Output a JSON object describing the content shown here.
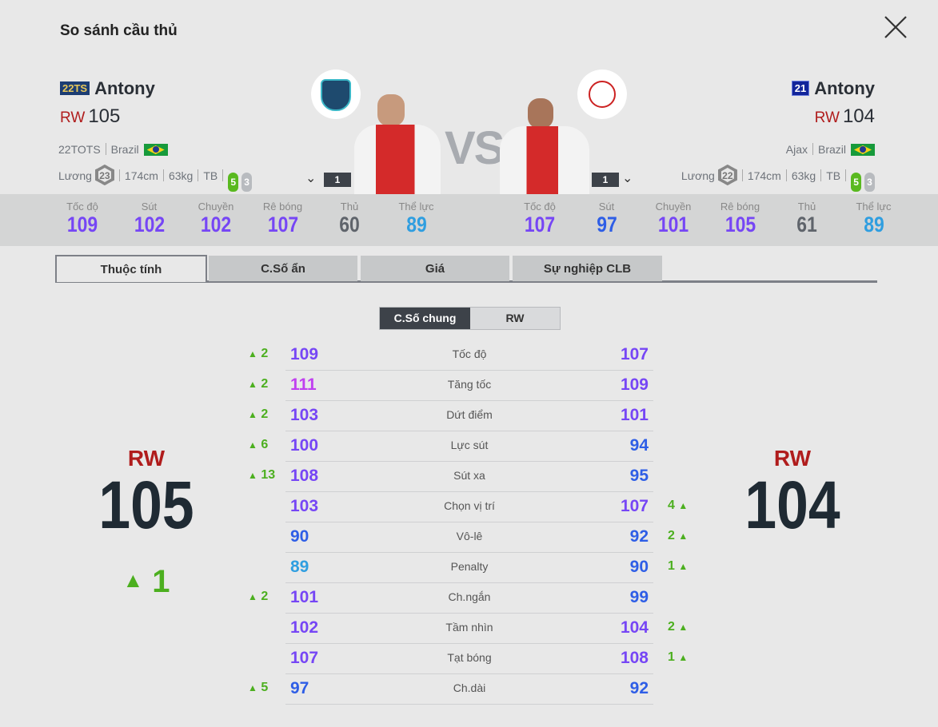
{
  "title": "So sánh cầu thủ",
  "colors": {
    "accent_red": "#b01c1c",
    "up_green": "#4caf1f",
    "purple": "#7646f5",
    "pink": "#c040f0",
    "blue": "#2e5ee6",
    "light_blue": "#2f9ee0",
    "grey": "#5f646b"
  },
  "left": {
    "season_badge": "22TS",
    "name": "Antony",
    "position": "RW",
    "ovr": "105",
    "season": "22TOTS",
    "nation": "Brazil",
    "salary_label": "Lương",
    "salary": "23",
    "height": "174cm",
    "weight": "63kg",
    "build": "TB",
    "weak_foot": "5",
    "skill": "3",
    "level": "1",
    "stats": [
      {
        "label": "Tốc độ",
        "value": "109"
      },
      {
        "label": "Sút",
        "value": "102"
      },
      {
        "label": "Chuyền",
        "value": "102"
      },
      {
        "label": "Rê bóng",
        "value": "107"
      },
      {
        "label": "Thủ",
        "value": "60"
      },
      {
        "label": "Thể lực",
        "value": "89"
      }
    ]
  },
  "right": {
    "season_badge": "21",
    "name": "Antony",
    "position": "RW",
    "ovr": "104",
    "club": "Ajax",
    "nation": "Brazil",
    "salary_label": "Lương",
    "salary": "22",
    "height": "174cm",
    "weight": "63kg",
    "build": "TB",
    "weak_foot": "5",
    "skill": "3",
    "level": "1",
    "stats": [
      {
        "label": "Tốc độ",
        "value": "107"
      },
      {
        "label": "Sút",
        "value": "97"
      },
      {
        "label": "Chuyền",
        "value": "101"
      },
      {
        "label": "Rê bóng",
        "value": "105"
      },
      {
        "label": "Thủ",
        "value": "61"
      },
      {
        "label": "Thể lực",
        "value": "89"
      }
    ]
  },
  "vs": "VS",
  "tabs": [
    "Thuộc tính",
    "C.Số ẩn",
    "Giá",
    "Sự nghiệp CLB"
  ],
  "active_tab": 0,
  "sub_tabs": [
    "C.Số chung",
    "RW"
  ],
  "summary": {
    "left_pos": "RW",
    "left_ovr": "105",
    "left_diff": "1",
    "right_pos": "RW",
    "right_ovr": "104"
  },
  "rows": [
    {
      "name": "Tốc độ",
      "left": "109",
      "right": "107",
      "ldiff": "2",
      "rdiff": ""
    },
    {
      "name": "Tăng tốc",
      "left": "111",
      "right": "109",
      "ldiff": "2",
      "rdiff": ""
    },
    {
      "name": "Dứt điểm",
      "left": "103",
      "right": "101",
      "ldiff": "2",
      "rdiff": ""
    },
    {
      "name": "Lực sút",
      "left": "100",
      "right": "94",
      "ldiff": "6",
      "rdiff": ""
    },
    {
      "name": "Sút xa",
      "left": "108",
      "right": "95",
      "ldiff": "13",
      "rdiff": ""
    },
    {
      "name": "Chọn vị trí",
      "left": "103",
      "right": "107",
      "ldiff": "",
      "rdiff": "4"
    },
    {
      "name": "Vô-lê",
      "left": "90",
      "right": "92",
      "ldiff": "",
      "rdiff": "2"
    },
    {
      "name": "Penalty",
      "left": "89",
      "right": "90",
      "ldiff": "",
      "rdiff": "1"
    },
    {
      "name": "Ch.ngắn",
      "left": "101",
      "right": "99",
      "ldiff": "2",
      "rdiff": ""
    },
    {
      "name": "Tầm nhìn",
      "left": "102",
      "right": "104",
      "ldiff": "",
      "rdiff": "2"
    },
    {
      "name": "Tạt bóng",
      "left": "107",
      "right": "108",
      "ldiff": "",
      "rdiff": "1"
    },
    {
      "name": "Ch.dài",
      "left": "97",
      "right": "92",
      "ldiff": "5",
      "rdiff": ""
    }
  ]
}
